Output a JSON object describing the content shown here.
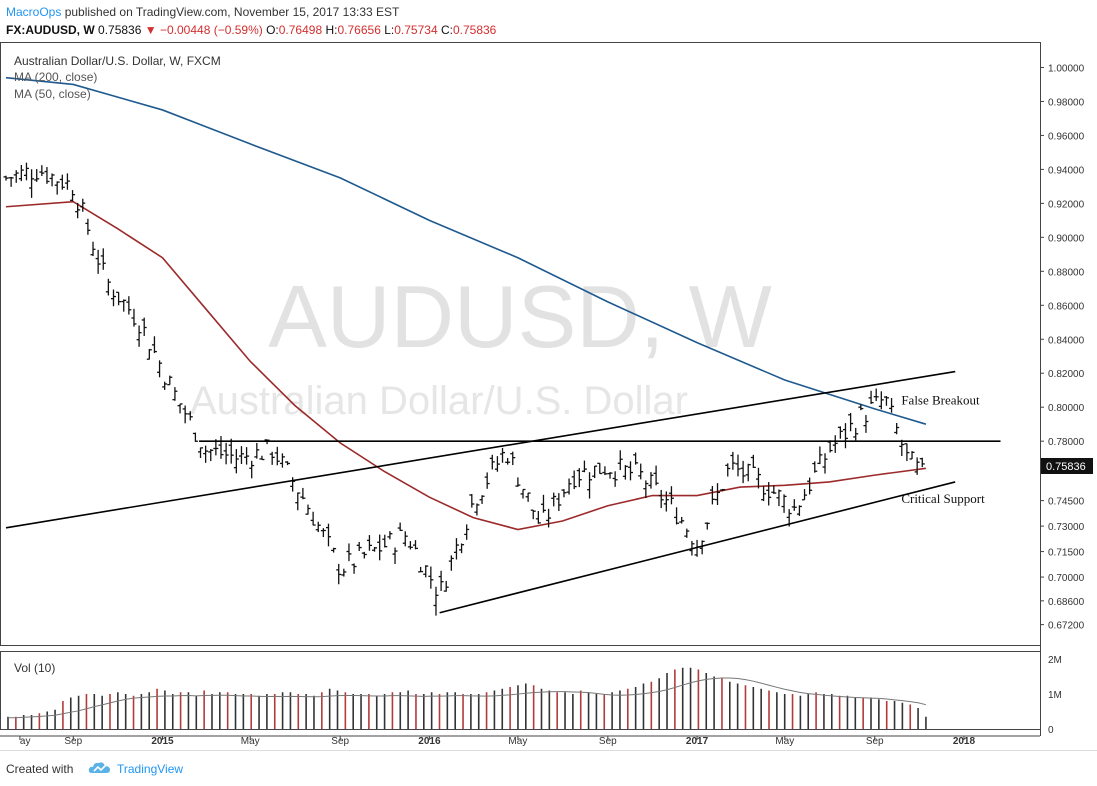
{
  "header": {
    "author": "MacroOps",
    "published_text": "published on TradingView.com, November 15, 2017 13:33 EST",
    "symbol": "FX:AUDUSD, W",
    "last": "0.75836",
    "change": "−0.00448 (−0.59%)",
    "open_label": "O:",
    "open": "0.76498",
    "high_label": "H:",
    "high": "0.76656",
    "low_label": "L:",
    "low": "0.75734",
    "close_label": "C:",
    "close": "0.75836"
  },
  "footer": {
    "created_with": "Created with",
    "brand": "TradingView"
  },
  "colors": {
    "ma200": "#1f5a8f",
    "ma50": "#9c2a2a",
    "bars": "#111111",
    "vol_up": "#333333",
    "vol_down": "#b33a3a",
    "price_badge": "#111111",
    "watermark": "#d9d9d9"
  },
  "chart_data": {
    "type": "line",
    "title": "Australian Dollar/U.S. Dollar, W, FXCM",
    "watermark_main": "AUDUSD, W",
    "watermark_sub": "Australian Dollar/U.S. Dollar",
    "indicator_labels": [
      "MA (200, close)",
      "MA (50, close)"
    ],
    "volume_label": "Vol (10)",
    "price_badge": "0.75836",
    "ylim": [
      0.66,
      1.015
    ],
    "y_ticks": [
      "1.00000",
      "0.98000",
      "0.96000",
      "0.94000",
      "0.92000",
      "0.90000",
      "0.88000",
      "0.86000",
      "0.84000",
      "0.82000",
      "0.80000",
      "0.78000",
      "0.74500",
      "0.73000",
      "0.71500",
      "0.70000",
      "0.68600",
      "0.67200"
    ],
    "volume_ticks": [
      "2M",
      "1M",
      "0"
    ],
    "x_tick_labels": [
      "ay",
      "Sep",
      "2015",
      "May",
      "Sep",
      "2016",
      "May",
      "Sep",
      "2017",
      "May",
      "Sep",
      "2018"
    ],
    "x_range": [
      "2014-06-01",
      "2018-04-15"
    ],
    "annotations": [
      {
        "text": "False Breakout",
        "date": "2017-09-10",
        "price": 0.804
      },
      {
        "text": "Critical Support",
        "date": "2017-09-10",
        "price": 0.746
      }
    ],
    "trendlines": [
      {
        "name": "upper-resistance",
        "from": [
          "2014-06-01",
          0.729
        ],
        "to": [
          "2017-12-20",
          0.821
        ]
      },
      {
        "name": "horizontal-level",
        "from": [
          "2015-02-20",
          0.78
        ],
        "to": [
          "2018-02-20",
          0.78
        ]
      },
      {
        "name": "lower-support",
        "from": [
          "2016-01-15",
          0.679
        ],
        "to": [
          "2017-12-20",
          0.756
        ]
      }
    ],
    "series": [
      {
        "name": "MA (200, close)",
        "x": [
          "2014-06-01",
          "2014-09-01",
          "2015-01-01",
          "2015-05-01",
          "2015-09-01",
          "2016-01-01",
          "2016-05-01",
          "2016-09-01",
          "2017-01-01",
          "2017-05-01",
          "2017-09-01",
          "2017-11-10"
        ],
        "values": [
          0.994,
          0.99,
          0.975,
          0.955,
          0.935,
          0.91,
          0.888,
          0.862,
          0.838,
          0.816,
          0.799,
          0.79
        ]
      },
      {
        "name": "MA (50, close)",
        "x": [
          "2014-06-01",
          "2014-09-01",
          "2014-11-01",
          "2015-01-01",
          "2015-03-01",
          "2015-05-01",
          "2015-07-01",
          "2015-09-01",
          "2015-11-01",
          "2016-01-01",
          "2016-03-01",
          "2016-05-01",
          "2016-07-01",
          "2016-09-01",
          "2016-11-01",
          "2017-01-01",
          "2017-03-01",
          "2017-05-01",
          "2017-07-01",
          "2017-09-01",
          "2017-11-10"
        ],
        "values": [
          0.918,
          0.921,
          0.905,
          0.888,
          0.858,
          0.827,
          0.801,
          0.779,
          0.762,
          0.747,
          0.735,
          0.728,
          0.733,
          0.742,
          0.748,
          0.748,
          0.753,
          0.754,
          0.756,
          0.76,
          0.764
        ]
      },
      {
        "name": "AUDUSD",
        "x": [
          "2014-06-01",
          "2014-07-15",
          "2014-09-01",
          "2014-10-15",
          "2014-12-01",
          "2015-01-15",
          "2015-03-01",
          "2015-04-15",
          "2015-06-01",
          "2015-07-15",
          "2015-09-01",
          "2015-10-15",
          "2015-12-01",
          "2016-01-15",
          "2016-03-01",
          "2016-04-15",
          "2016-06-01",
          "2016-07-15",
          "2016-09-01",
          "2016-10-15",
          "2016-12-01",
          "2017-01-01",
          "2017-02-15",
          "2017-04-01",
          "2017-05-15",
          "2017-07-01",
          "2017-08-15",
          "2017-09-15",
          "2017-10-15",
          "2017-11-10"
        ],
        "values": [
          0.935,
          0.94,
          0.93,
          0.875,
          0.85,
          0.81,
          0.775,
          0.77,
          0.775,
          0.745,
          0.705,
          0.715,
          0.725,
          0.69,
          0.745,
          0.775,
          0.73,
          0.76,
          0.765,
          0.76,
          0.74,
          0.72,
          0.765,
          0.755,
          0.74,
          0.775,
          0.795,
          0.805,
          0.77,
          0.758
        ]
      }
    ],
    "volume_values": [
      0.35,
      0.35,
      0.4,
      0.4,
      0.45,
      0.5,
      0.55,
      0.8,
      0.9,
      0.95,
      1.0,
      1.0,
      0.95,
      1.0,
      1.05,
      1.0,
      0.95,
      1.0,
      1.05,
      1.15,
      1.1,
      1.0,
      1.05,
      1.05,
      0.95,
      1.1,
      1.0,
      1.05,
      1.05,
      1.0,
      1.0,
      1.0,
      0.95,
      1.0,
      1.0,
      1.05,
      1.05,
      1.0,
      1.0,
      0.95,
      1.05,
      1.15,
      1.1,
      1.05,
      1.0,
      1.0,
      1.0,
      0.95,
      1.0,
      1.05,
      1.05,
      1.1,
      1.0,
      1.0,
      1.05,
      1.0,
      1.05,
      1.05,
      1.0,
      1.0,
      1.0,
      1.05,
      1.1,
      1.15,
      1.2,
      1.25,
      1.3,
      1.25,
      1.15,
      1.1,
      1.05,
      1.05,
      1.0,
      1.1,
      1.05,
      1.0,
      1.0,
      1.05,
      1.1,
      1.15,
      1.2,
      1.3,
      1.35,
      1.45,
      1.6,
      1.7,
      1.75,
      1.75,
      1.7,
      1.6,
      1.5,
      1.45,
      1.35,
      1.3,
      1.25,
      1.2,
      1.15,
      1.1,
      1.05,
      1.0,
      1.0,
      0.95,
      1.0,
      1.05,
      1.0,
      1.0,
      0.95,
      0.95,
      0.9,
      0.9,
      0.9,
      0.85,
      0.8,
      0.8,
      0.75,
      0.7,
      0.6,
      0.35
    ]
  }
}
